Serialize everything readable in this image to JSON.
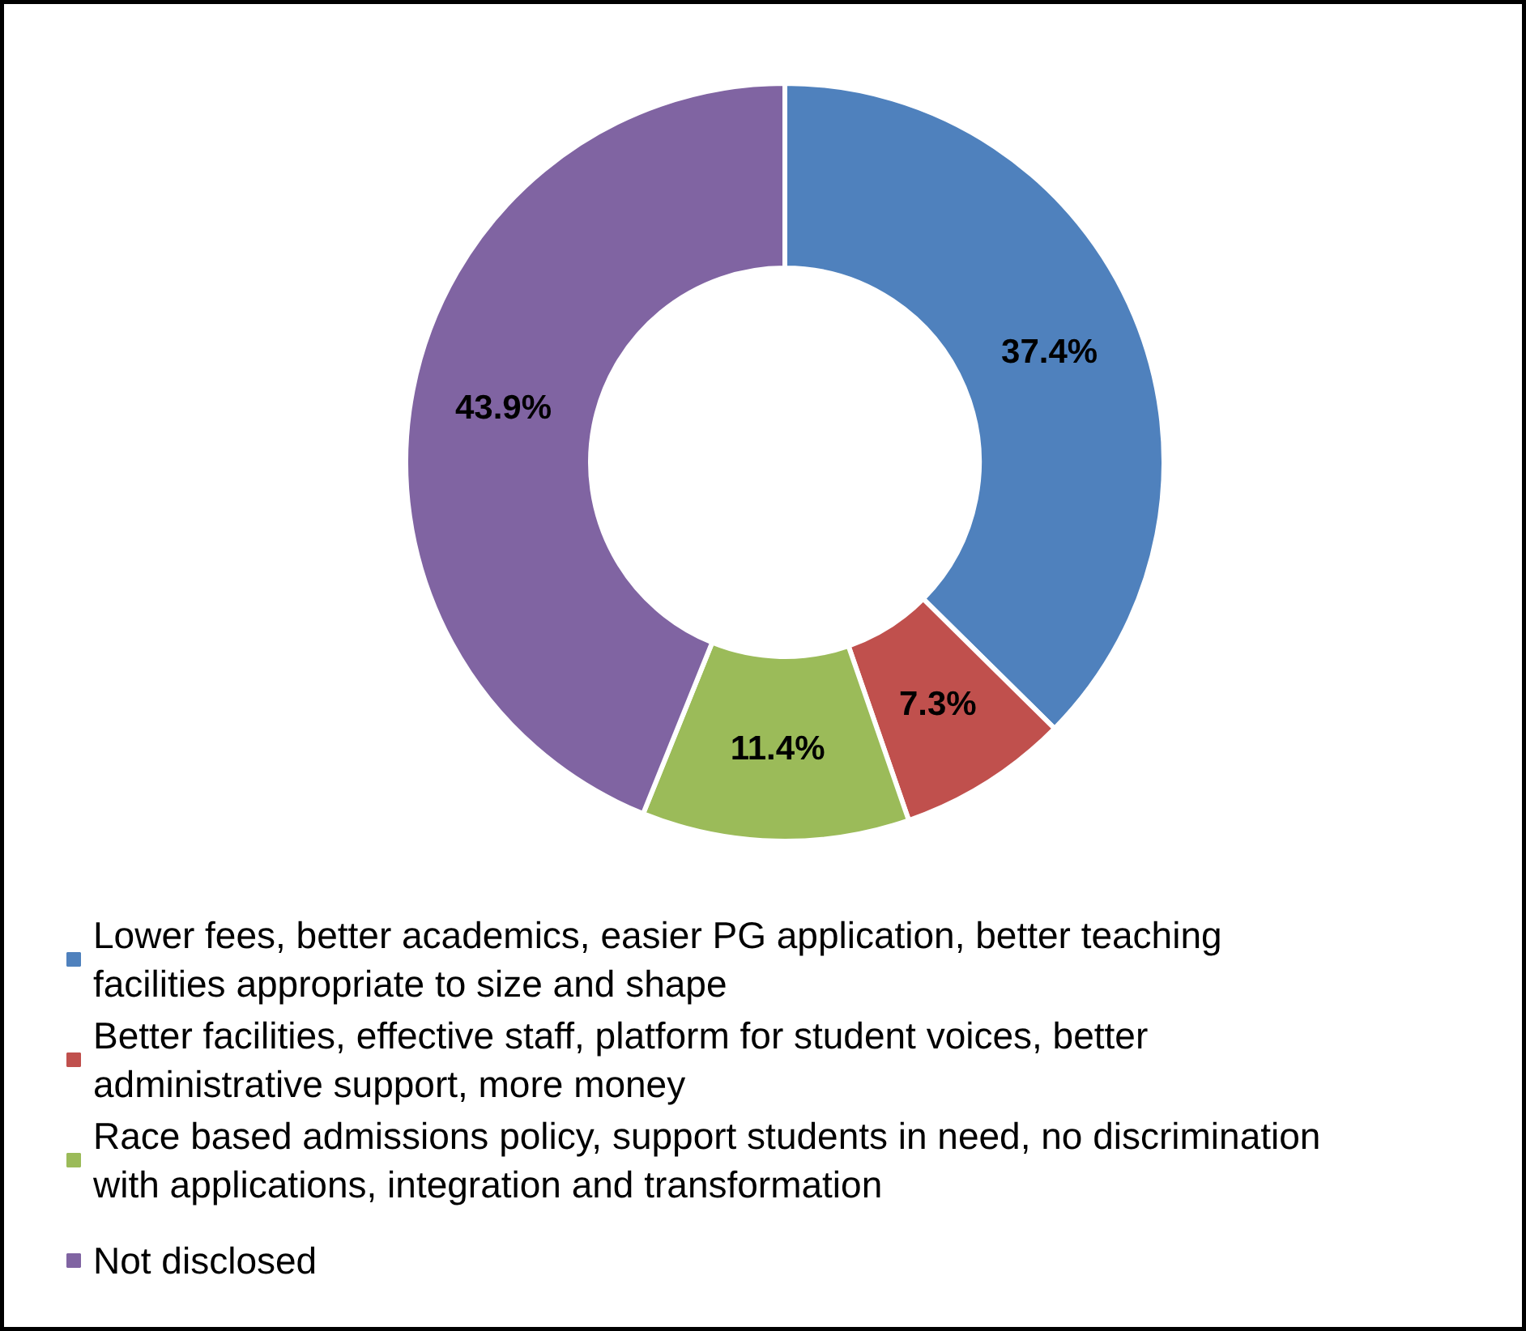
{
  "chart_data": {
    "type": "donut",
    "categories": [
      "Lower fees, better academics, easier PG application,  better teaching facilities appropriate to size and shape",
      "Better facilities, effective staff, platform for student voices, better administrative support, more money",
      "Race based admissions policy, support students in need, no discrimination with applications, integration and transformation",
      "Not disclosed"
    ],
    "values": [
      37.4,
      7.3,
      11.4,
      43.9
    ],
    "colors": [
      "#4f81bd",
      "#c0504d",
      "#9bbb59",
      "#8064a2"
    ],
    "value_labels": [
      "37.4%",
      "7.3%",
      "11.4%",
      "43.9%"
    ],
    "legend": "bottom"
  }
}
